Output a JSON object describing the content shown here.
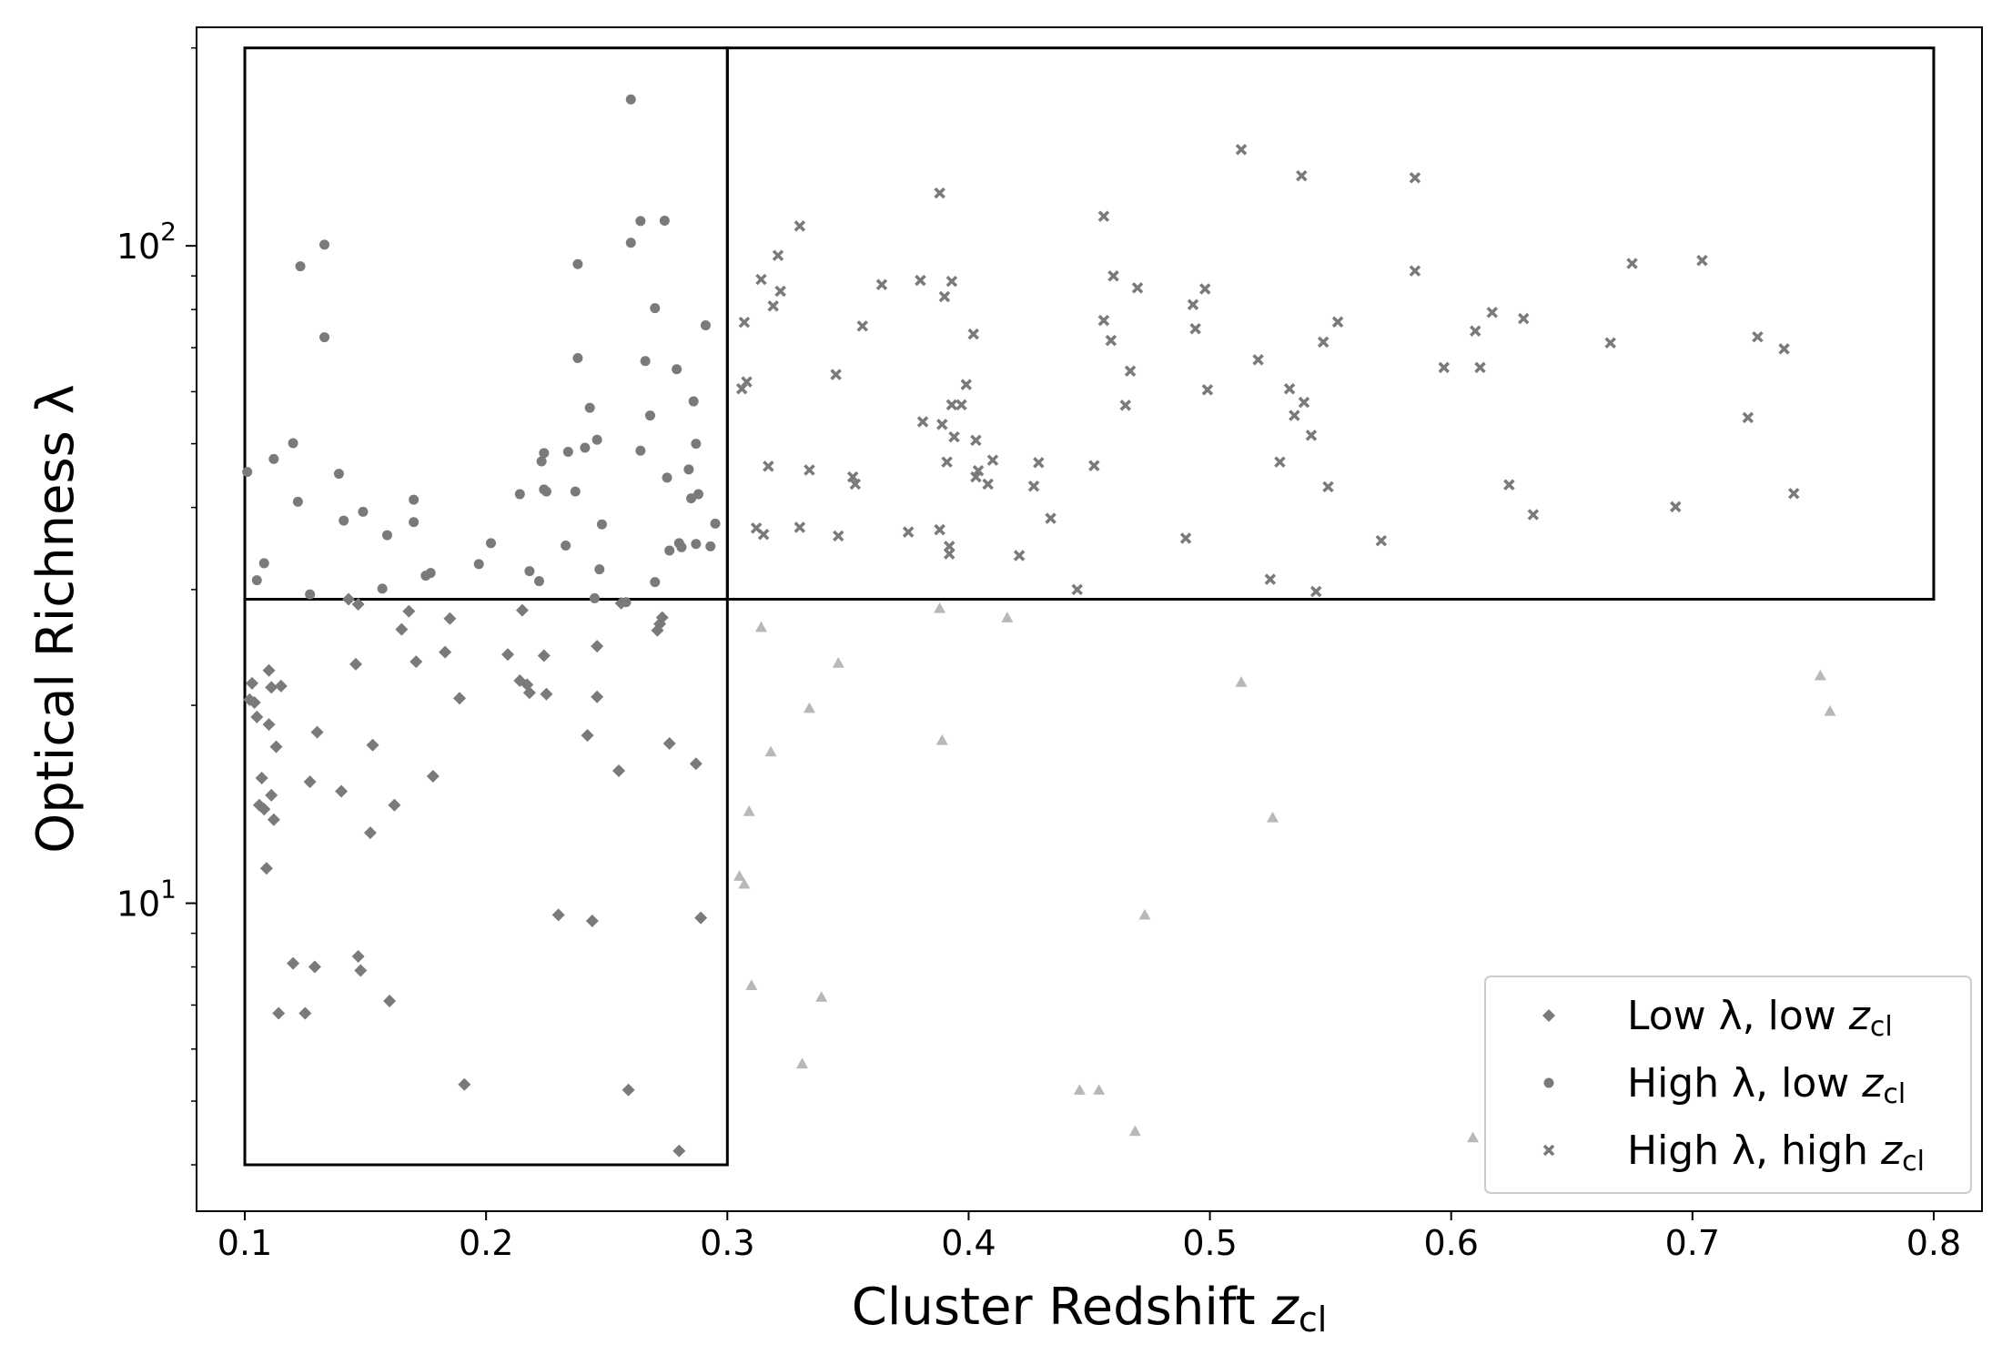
{
  "chart_data": {
    "type": "scatter",
    "title": "",
    "xlabel": "Cluster Redshift",
    "xlabel_var": "z",
    "xlabel_sub": "cl",
    "ylabel": "Optical Richness λ",
    "xlim": [
      0.08,
      0.82
    ],
    "ylim": [
      3.4,
      215
    ],
    "yscale": "log",
    "grid": false,
    "legend_position": "lower-right",
    "x_ticks": [
      {
        "value": 0.1,
        "label": "0.1"
      },
      {
        "value": 0.2,
        "label": "0.2"
      },
      {
        "value": 0.3,
        "label": "0.3"
      },
      {
        "value": 0.4,
        "label": "0.4"
      },
      {
        "value": 0.5,
        "label": "0.5"
      },
      {
        "value": 0.6,
        "label": "0.6"
      },
      {
        "value": 0.7,
        "label": "0.7"
      },
      {
        "value": 0.8,
        "label": "0.8"
      }
    ],
    "y_ticks": [
      {
        "value": 10,
        "base": "10",
        "exp": "1"
      },
      {
        "value": 100,
        "base": "10",
        "exp": "2"
      }
    ],
    "y_minor_ticks": [
      4,
      5,
      6,
      7,
      8,
      9,
      20,
      30,
      40,
      50,
      60,
      70,
      80,
      90,
      200
    ],
    "boxes": [
      {
        "x0": 0.1,
        "x1": 0.3,
        "y0": 4.0,
        "y1": 29
      },
      {
        "x0": 0.1,
        "x1": 0.3,
        "y0": 29,
        "y1": 200
      },
      {
        "x0": 0.3,
        "x1": 0.8,
        "y0": 29,
        "y1": 200
      }
    ],
    "series": [
      {
        "name": "Low λ, low",
        "name_var": "z",
        "name_sub": "cl",
        "marker": "diamond",
        "color": "#7a7a7a",
        "points": [
          [
            0.102,
            20.4
          ],
          [
            0.103,
            21.6
          ],
          [
            0.104,
            20.2
          ],
          [
            0.105,
            19.2
          ],
          [
            0.106,
            14.1
          ],
          [
            0.107,
            15.5
          ],
          [
            0.108,
            13.9
          ],
          [
            0.109,
            11.3
          ],
          [
            0.11,
            22.6
          ],
          [
            0.11,
            18.7
          ],
          [
            0.111,
            21.3
          ],
          [
            0.111,
            14.6
          ],
          [
            0.112,
            13.4
          ],
          [
            0.113,
            17.3
          ],
          [
            0.114,
            6.8
          ],
          [
            0.115,
            21.4
          ],
          [
            0.12,
            8.1
          ],
          [
            0.125,
            6.8
          ],
          [
            0.127,
            15.3
          ],
          [
            0.129,
            8.0
          ],
          [
            0.13,
            18.2
          ],
          [
            0.14,
            14.8
          ],
          [
            0.143,
            29.0
          ],
          [
            0.146,
            23.1
          ],
          [
            0.147,
            28.5
          ],
          [
            0.147,
            8.3
          ],
          [
            0.148,
            7.9
          ],
          [
            0.152,
            12.8
          ],
          [
            0.153,
            17.4
          ],
          [
            0.16,
            7.1
          ],
          [
            0.162,
            14.1
          ],
          [
            0.165,
            26.1
          ],
          [
            0.168,
            27.8
          ],
          [
            0.171,
            23.3
          ],
          [
            0.178,
            15.6
          ],
          [
            0.183,
            24.1
          ],
          [
            0.185,
            27.1
          ],
          [
            0.189,
            20.5
          ],
          [
            0.191,
            5.3
          ],
          [
            0.209,
            23.9
          ],
          [
            0.214,
            21.8
          ],
          [
            0.215,
            27.9
          ],
          [
            0.217,
            21.5
          ],
          [
            0.218,
            20.9
          ],
          [
            0.224,
            23.8
          ],
          [
            0.225,
            20.8
          ],
          [
            0.23,
            9.6
          ],
          [
            0.242,
            18.0
          ],
          [
            0.244,
            9.4
          ],
          [
            0.246,
            24.6
          ],
          [
            0.246,
            20.6
          ],
          [
            0.255,
            15.9
          ],
          [
            0.256,
            28.6
          ],
          [
            0.259,
            5.2
          ],
          [
            0.271,
            26.0
          ],
          [
            0.272,
            26.6
          ],
          [
            0.273,
            27.2
          ],
          [
            0.276,
            17.5
          ],
          [
            0.28,
            4.2
          ],
          [
            0.287,
            16.3
          ],
          [
            0.289,
            9.5
          ]
        ]
      },
      {
        "name": "High λ, low",
        "name_var": "z",
        "name_sub": "cl",
        "marker": "circle",
        "color": "#7a7a7a",
        "points": [
          [
            0.101,
            45.3
          ],
          [
            0.105,
            31.0
          ],
          [
            0.108,
            32.9
          ],
          [
            0.112,
            47.4
          ],
          [
            0.12,
            50.1
          ],
          [
            0.122,
            40.8
          ],
          [
            0.123,
            93.1
          ],
          [
            0.127,
            29.5
          ],
          [
            0.133,
            100.4
          ],
          [
            0.133,
            72.6
          ],
          [
            0.139,
            45.0
          ],
          [
            0.141,
            38.2
          ],
          [
            0.149,
            39.4
          ],
          [
            0.157,
            30.1
          ],
          [
            0.159,
            36.3
          ],
          [
            0.17,
            41.1
          ],
          [
            0.17,
            38.0
          ],
          [
            0.175,
            31.5
          ],
          [
            0.177,
            31.8
          ],
          [
            0.197,
            32.8
          ],
          [
            0.202,
            35.3
          ],
          [
            0.214,
            41.9
          ],
          [
            0.218,
            32.0
          ],
          [
            0.222,
            30.9
          ],
          [
            0.223,
            47.0
          ],
          [
            0.224,
            48.4
          ],
          [
            0.224,
            42.6
          ],
          [
            0.225,
            42.3
          ],
          [
            0.233,
            35.0
          ],
          [
            0.234,
            48.6
          ],
          [
            0.237,
            42.3
          ],
          [
            0.238,
            93.8
          ],
          [
            0.238,
            67.5
          ],
          [
            0.241,
            49.3
          ],
          [
            0.243,
            56.7
          ],
          [
            0.245,
            29.1
          ],
          [
            0.246,
            50.7
          ],
          [
            0.247,
            32.2
          ],
          [
            0.248,
            37.7
          ],
          [
            0.258,
            28.7
          ],
          [
            0.26,
            167.0
          ],
          [
            0.26,
            101.1
          ],
          [
            0.264,
            109.1
          ],
          [
            0.264,
            48.8
          ],
          [
            0.266,
            66.8
          ],
          [
            0.268,
            55.2
          ],
          [
            0.27,
            30.8
          ],
          [
            0.27,
            80.4
          ],
          [
            0.274,
            109.2
          ],
          [
            0.275,
            44.4
          ],
          [
            0.276,
            34.4
          ],
          [
            0.279,
            64.9
          ],
          [
            0.28,
            35.3
          ],
          [
            0.281,
            34.8
          ],
          [
            0.284,
            45.7
          ],
          [
            0.285,
            41.3
          ],
          [
            0.286,
            58.0
          ],
          [
            0.287,
            50.0
          ],
          [
            0.287,
            35.2
          ],
          [
            0.288,
            41.9
          ],
          [
            0.291,
            75.7
          ],
          [
            0.293,
            34.9
          ],
          [
            0.295,
            37.8
          ]
        ]
      },
      {
        "name": "High λ, high",
        "name_var": "z",
        "name_sub": "cl",
        "marker": "cross",
        "color": "#7a7a7a",
        "points": [
          [
            0.306,
            60.6
          ],
          [
            0.307,
            76.5
          ],
          [
            0.308,
            62.1
          ],
          [
            0.312,
            37.2
          ],
          [
            0.314,
            88.9
          ],
          [
            0.315,
            36.4
          ],
          [
            0.317,
            46.2
          ],
          [
            0.319,
            81.0
          ],
          [
            0.321,
            96.7
          ],
          [
            0.322,
            85.3
          ],
          [
            0.33,
            107.2
          ],
          [
            0.33,
            37.3
          ],
          [
            0.334,
            45.6
          ],
          [
            0.345,
            63.7
          ],
          [
            0.346,
            36.2
          ],
          [
            0.352,
            44.5
          ],
          [
            0.353,
            43.4
          ],
          [
            0.356,
            75.5
          ],
          [
            0.364,
            87.3
          ],
          [
            0.375,
            36.7
          ],
          [
            0.38,
            88.6
          ],
          [
            0.381,
            54.0
          ],
          [
            0.388,
            37.0
          ],
          [
            0.388,
            120.3
          ],
          [
            0.389,
            53.5
          ],
          [
            0.39,
            83.7
          ],
          [
            0.391,
            46.9
          ],
          [
            0.392,
            34.9
          ],
          [
            0.392,
            34.0
          ],
          [
            0.393,
            57.3
          ],
          [
            0.393,
            88.3
          ],
          [
            0.394,
            51.2
          ],
          [
            0.397,
            57.3
          ],
          [
            0.399,
            61.5
          ],
          [
            0.402,
            73.4
          ],
          [
            0.403,
            50.6
          ],
          [
            0.403,
            44.5
          ],
          [
            0.404,
            45.5
          ],
          [
            0.408,
            43.4
          ],
          [
            0.41,
            47.2
          ],
          [
            0.421,
            33.8
          ],
          [
            0.427,
            43.1
          ],
          [
            0.429,
            46.8
          ],
          [
            0.434,
            38.5
          ],
          [
            0.445,
            30.0
          ],
          [
            0.452,
            46.3
          ],
          [
            0.456,
            110.9
          ],
          [
            0.456,
            77.0
          ],
          [
            0.459,
            71.8
          ],
          [
            0.46,
            90.0
          ],
          [
            0.465,
            57.2
          ],
          [
            0.467,
            64.5
          ],
          [
            0.47,
            86.3
          ],
          [
            0.49,
            35.9
          ],
          [
            0.493,
            81.4
          ],
          [
            0.494,
            74.8
          ],
          [
            0.498,
            86.0
          ],
          [
            0.499,
            60.4
          ],
          [
            0.513,
            140.1
          ],
          [
            0.52,
            67.1
          ],
          [
            0.525,
            31.1
          ],
          [
            0.529,
            46.9
          ],
          [
            0.533,
            60.6
          ],
          [
            0.535,
            55.2
          ],
          [
            0.538,
            127.8
          ],
          [
            0.539,
            57.8
          ],
          [
            0.542,
            51.5
          ],
          [
            0.544,
            29.8
          ],
          [
            0.547,
            71.4
          ],
          [
            0.549,
            43.0
          ],
          [
            0.553,
            76.6
          ],
          [
            0.571,
            35.6
          ],
          [
            0.585,
            126.9
          ],
          [
            0.585,
            91.6
          ],
          [
            0.597,
            65.3
          ],
          [
            0.61,
            74.2
          ],
          [
            0.612,
            65.3
          ],
          [
            0.617,
            79.2
          ],
          [
            0.624,
            43.3
          ],
          [
            0.63,
            77.5
          ],
          [
            0.634,
            39.0
          ],
          [
            0.666,
            71.2
          ],
          [
            0.675,
            94.0
          ],
          [
            0.693,
            40.1
          ],
          [
            0.704,
            95.0
          ],
          [
            0.723,
            54.8
          ],
          [
            0.727,
            72.7
          ],
          [
            0.738,
            69.7
          ],
          [
            0.742,
            42.0
          ]
        ]
      },
      {
        "name": "",
        "marker": "triangle",
        "color": "#b8b8b8",
        "points": [
          [
            0.305,
            11.0
          ],
          [
            0.307,
            10.7
          ],
          [
            0.309,
            13.8
          ],
          [
            0.31,
            7.5
          ],
          [
            0.314,
            26.3
          ],
          [
            0.318,
            17.0
          ],
          [
            0.331,
            5.7
          ],
          [
            0.334,
            19.8
          ],
          [
            0.339,
            7.2
          ],
          [
            0.346,
            23.2
          ],
          [
            0.388,
            28.1
          ],
          [
            0.389,
            17.7
          ],
          [
            0.416,
            27.2
          ],
          [
            0.446,
            5.2
          ],
          [
            0.454,
            5.2
          ],
          [
            0.469,
            4.5
          ],
          [
            0.473,
            9.6
          ],
          [
            0.513,
            21.7
          ],
          [
            0.526,
            13.5
          ],
          [
            0.609,
            4.4
          ],
          [
            0.65,
            6.4
          ],
          [
            0.753,
            22.2
          ],
          [
            0.757,
            19.6
          ]
        ]
      }
    ]
  }
}
